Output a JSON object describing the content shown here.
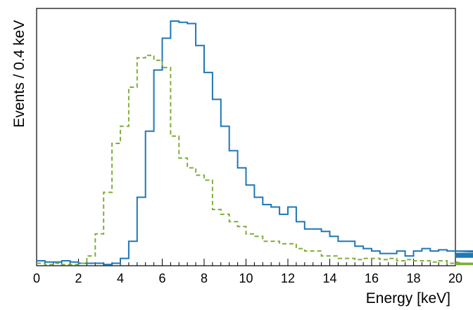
{
  "chart_data": {
    "type": "histogram",
    "xlabel": "Energy [keV]",
    "ylabel": "Events / 0.4 keV",
    "xlim": [
      0,
      20
    ],
    "ylim": [
      0,
      1
    ],
    "y_ticks_labeled": false,
    "bin_width": 0.4,
    "x_ticks": [
      0,
      2,
      4,
      6,
      8,
      10,
      12,
      14,
      16,
      18,
      20
    ],
    "x_tick_labels": [
      "0",
      "2",
      "4",
      "6",
      "8",
      "10",
      "12",
      "14",
      "16",
      "18",
      "20"
    ],
    "series": [
      {
        "style": "solid",
        "color": "#1f77b4",
        "values": [
          0.02,
          0.015,
          0.015,
          0.02,
          0.015,
          0.01,
          0.01,
          0.01,
          0.005,
          0.01,
          0.03,
          0.1,
          0.28,
          0.55,
          0.8,
          0.93,
          1.0,
          0.995,
          0.99,
          0.9,
          0.79,
          0.68,
          0.57,
          0.47,
          0.4,
          0.33,
          0.28,
          0.25,
          0.24,
          0.21,
          0.24,
          0.18,
          0.15,
          0.15,
          0.14,
          0.12,
          0.1,
          0.1,
          0.08,
          0.07,
          0.06,
          0.05,
          0.05,
          0.06,
          0.04,
          0.06,
          0.07,
          0.06,
          0.065,
          0.06,
          0.045,
          0.04,
          0.05,
          0.04,
          0.05,
          0.045,
          0.06,
          0.05,
          0.035,
          0.05,
          0.05
        ]
      },
      {
        "style": "dashed",
        "color": "#7fae3b",
        "values": [
          0.01,
          0.005,
          0.01,
          0.005,
          0.005,
          0.01,
          0.04,
          0.13,
          0.3,
          0.5,
          0.57,
          0.73,
          0.85,
          0.86,
          0.84,
          0.81,
          0.53,
          0.44,
          0.4,
          0.37,
          0.35,
          0.23,
          0.21,
          0.18,
          0.16,
          0.13,
          0.12,
          0.1,
          0.1,
          0.09,
          0.09,
          0.07,
          0.06,
          0.06,
          0.04,
          0.04,
          0.03,
          0.03,
          0.025,
          0.03,
          0.03,
          0.025,
          0.03,
          0.02,
          0.025,
          0.02,
          0.02,
          0.015,
          0.02,
          0.01,
          0.015,
          0.01,
          0.005,
          0.01,
          0.005,
          0.01,
          0.005,
          0.01,
          0.005,
          0.005
        ]
      }
    ]
  }
}
